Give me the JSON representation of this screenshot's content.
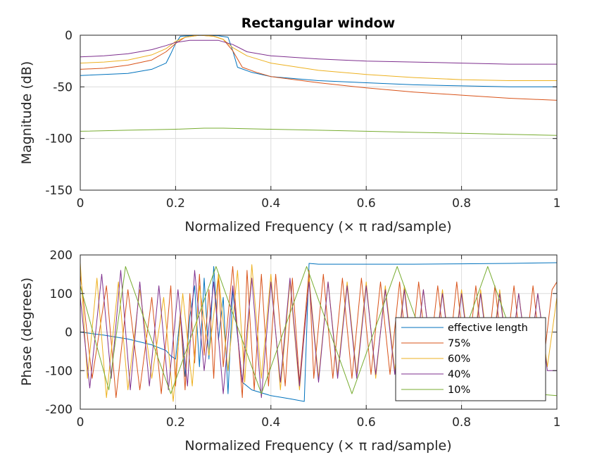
{
  "figure": {
    "title": "Rectangular window"
  },
  "colors": {
    "effective_length": "#0072BD",
    "p75": "#D95319",
    "p60": "#EDB120",
    "p40": "#7E2F8E",
    "p10": "#77AC30",
    "grid": "#dcdcdc",
    "axis": "#262626"
  },
  "chart_data": [
    {
      "type": "line",
      "title": "Rectangular window",
      "xlabel": "Normalized Frequency (× π rad/sample)",
      "ylabel": "Magnitude (dB)",
      "xlim": [
        0,
        1
      ],
      "ylim": [
        -150,
        0
      ],
      "xticks": [
        "0",
        "0.2",
        "0.4",
        "0.6",
        "0.8",
        "1"
      ],
      "yticks": [
        "-150",
        "-100",
        "-50",
        "0"
      ],
      "grid": true,
      "series": [
        {
          "name": "effective length",
          "color_key": "effective_length",
          "x": [
            0,
            0.1,
            0.15,
            0.18,
            0.19,
            0.2,
            0.21,
            0.23,
            0.26,
            0.29,
            0.31,
            0.32,
            0.33,
            0.36,
            0.4,
            0.5,
            0.6,
            0.7,
            0.8,
            0.9,
            1.0
          ],
          "y": [
            -39,
            -37,
            -33,
            -27,
            -18,
            -8,
            -1,
            -0.5,
            0,
            -0.5,
            -2,
            -15,
            -31,
            -36,
            -40,
            -44,
            -46,
            -48,
            -49,
            -50,
            -50
          ]
        },
        {
          "name": "75%",
          "color_key": "p75",
          "x": [
            0,
            0.05,
            0.1,
            0.15,
            0.18,
            0.2,
            0.22,
            0.25,
            0.28,
            0.3,
            0.32,
            0.34,
            0.37,
            0.4,
            0.5,
            0.6,
            0.7,
            0.8,
            0.9,
            1.0
          ],
          "y": [
            -33,
            -32,
            -29,
            -24,
            -16,
            -8,
            -2,
            0,
            -1,
            -4,
            -15,
            -31,
            -36,
            -40,
            -46,
            -51,
            -55,
            -58,
            -61,
            -63
          ]
        },
        {
          "name": "60%",
          "color_key": "p60",
          "x": [
            0,
            0.05,
            0.1,
            0.15,
            0.18,
            0.2,
            0.22,
            0.25,
            0.28,
            0.3,
            0.32,
            0.35,
            0.4,
            0.5,
            0.6,
            0.7,
            0.8,
            0.9,
            1.0
          ],
          "y": [
            -27,
            -26,
            -24,
            -19,
            -13,
            -6,
            -2,
            0,
            -1,
            -4,
            -12,
            -20,
            -27,
            -34,
            -38,
            -41,
            -43,
            -44,
            -44
          ]
        },
        {
          "name": "40%",
          "color_key": "p40",
          "x": [
            0,
            0.05,
            0.1,
            0.15,
            0.18,
            0.2,
            0.23,
            0.26,
            0.29,
            0.32,
            0.35,
            0.4,
            0.5,
            0.6,
            0.7,
            0.8,
            0.9,
            1.0
          ],
          "y": [
            -21,
            -20,
            -18,
            -14,
            -10,
            -7,
            -5,
            -5,
            -5,
            -9,
            -16,
            -20,
            -23,
            -25,
            -26,
            -27,
            -28,
            -28
          ]
        },
        {
          "name": "10%",
          "color_key": "p10",
          "x": [
            0,
            0.1,
            0.2,
            0.26,
            0.3,
            0.4,
            0.5,
            0.6,
            0.7,
            0.8,
            0.9,
            1.0
          ],
          "y": [
            -93,
            -92,
            -91,
            -90,
            -90,
            -91,
            -92,
            -93,
            -94,
            -95,
            -96,
            -97
          ]
        }
      ]
    },
    {
      "type": "line",
      "xlabel": "Normalized Frequency (× π rad/sample)",
      "ylabel": "Phase (degrees)",
      "xlim": [
        0,
        1
      ],
      "ylim": [
        -200,
        200
      ],
      "xticks": [
        "0",
        "0.2",
        "0.4",
        "0.6",
        "0.8",
        "1"
      ],
      "yticks": [
        "-200",
        "-100",
        "0",
        "100",
        "200"
      ],
      "grid": true,
      "legend": "bottom-right",
      "legend_entries": [
        "effective length",
        "75%",
        "60%",
        "40%",
        "10%"
      ],
      "series": [
        {
          "name": "effective length",
          "color_key": "effective_length",
          "x": [
            0,
            0.05,
            0.1,
            0.15,
            0.18,
            0.19,
            0.2,
            0.21,
            0.22,
            0.23,
            0.24,
            0.25,
            0.26,
            0.27,
            0.28,
            0.29,
            0.3,
            0.31,
            0.32,
            0.33,
            0.34,
            0.36,
            0.4,
            0.44,
            0.47,
            0.475,
            0.48,
            0.5,
            0.6,
            0.7,
            0.8,
            0.9,
            1.0
          ],
          "y": [
            0,
            -8,
            -18,
            -33,
            -48,
            -62,
            -70,
            45,
            -115,
            40,
            120,
            -90,
            140,
            -70,
            170,
            -20,
            90,
            -160,
            110,
            -10,
            -130,
            -150,
            -165,
            -173,
            -180,
            0,
            178,
            176,
            176,
            176,
            177,
            178,
            180
          ]
        },
        {
          "name": "75%",
          "color_key": "p75",
          "x": [
            0,
            0.005,
            0.025,
            0.055,
            0.075,
            0.1,
            0.125,
            0.15,
            0.17,
            0.19,
            0.2,
            0.21,
            0.22,
            0.23,
            0.24,
            0.25,
            0.26,
            0.27,
            0.28,
            0.29,
            0.3,
            0.32,
            0.34,
            0.35,
            0.365,
            0.38,
            0.395,
            0.41,
            0.43,
            0.445,
            0.46,
            0.48,
            0.49,
            0.51,
            0.53,
            0.55,
            0.57,
            0.59,
            0.61,
            0.63,
            0.65,
            0.67,
            0.69,
            0.71,
            0.73,
            0.75,
            0.77,
            0.79,
            0.81,
            0.83,
            0.85,
            0.87,
            0.89,
            0.91,
            0.93,
            0.95,
            0.97,
            0.99,
            1.0
          ],
          "y": [
            150,
            100,
            -120,
            120,
            -170,
            110,
            -150,
            90,
            -160,
            120,
            -140,
            50,
            -150,
            100,
            -80,
            150,
            -60,
            110,
            -120,
            150,
            -90,
            170,
            -170,
            160,
            -150,
            150,
            -140,
            150,
            -140,
            140,
            -130,
            160,
            -120,
            150,
            -120,
            140,
            -120,
            140,
            -110,
            130,
            -110,
            130,
            -110,
            130,
            -100,
            120,
            -110,
            130,
            -110,
            120,
            -110,
            120,
            -100,
            120,
            -110,
            120,
            -100,
            110,
            130
          ]
        },
        {
          "name": "60%",
          "color_key": "p60",
          "x": [
            0,
            0.015,
            0.035,
            0.055,
            0.08,
            0.1,
            0.125,
            0.15,
            0.175,
            0.195,
            0.215,
            0.235,
            0.25,
            0.27,
            0.29,
            0.31,
            0.33,
            0.345,
            0.36,
            0.38,
            0.4,
            0.42,
            0.44,
            0.46,
            0.48,
            0.5,
            0.52,
            0.54,
            0.56,
            0.58,
            0.6,
            0.62,
            0.64,
            0.66,
            0.68,
            0.7,
            0.72,
            0.74,
            0.76,
            0.78,
            0.8,
            0.82,
            0.84,
            0.86,
            0.88,
            0.9,
            0.92,
            0.94,
            0.96,
            0.98,
            1.0
          ],
          "y": [
            180,
            -120,
            140,
            -170,
            130,
            -150,
            110,
            -120,
            90,
            -180,
            100,
            -140,
            120,
            -60,
            150,
            -100,
            160,
            -130,
            175,
            -120,
            150,
            -150,
            130,
            -150,
            140,
            -120,
            130,
            -110,
            130,
            -110,
            130,
            -120,
            120,
            -100,
            120,
            -100,
            110,
            -100,
            110,
            -100,
            110,
            -90,
            110,
            -90,
            110,
            -100,
            100,
            -90,
            100,
            -90,
            90
          ]
        },
        {
          "name": "40%",
          "color_key": "p40",
          "x": [
            0,
            0.02,
            0.045,
            0.065,
            0.085,
            0.105,
            0.125,
            0.145,
            0.165,
            0.185,
            0.205,
            0.225,
            0.24,
            0.26,
            0.28,
            0.3,
            0.32,
            0.34,
            0.36,
            0.38,
            0.4,
            0.42,
            0.44,
            0.46,
            0.48,
            0.5,
            0.52,
            0.54,
            0.56,
            0.58,
            0.6,
            0.62,
            0.64,
            0.66,
            0.68,
            0.7,
            0.72,
            0.74,
            0.76,
            0.78,
            0.8,
            0.82,
            0.84,
            0.86,
            0.88,
            0.9,
            0.92,
            0.94,
            0.96,
            0.98,
            1.0
          ],
          "y": [
            90,
            -145,
            150,
            -120,
            160,
            -150,
            130,
            -140,
            120,
            -150,
            110,
            -140,
            160,
            -100,
            130,
            -160,
            120,
            -130,
            140,
            -170,
            130,
            -130,
            140,
            -140,
            130,
            -130,
            130,
            -120,
            120,
            -120,
            120,
            -110,
            110,
            -110,
            110,
            -110,
            110,
            -100,
            100,
            -100,
            100,
            -100,
            100,
            -100,
            100,
            -100,
            100,
            -100,
            100,
            -100,
            -100
          ]
        },
        {
          "name": "10%",
          "color_key": "p10",
          "x": [
            0,
            0.06,
            0.095,
            0.19,
            0.285,
            0.38,
            0.475,
            0.57,
            0.665,
            0.76,
            0.855,
            0.95,
            1.0
          ],
          "y": [
            120,
            -150,
            170,
            -160,
            170,
            -160,
            170,
            -160,
            170,
            -160,
            170,
            -160,
            -165
          ]
        }
      ]
    }
  ]
}
